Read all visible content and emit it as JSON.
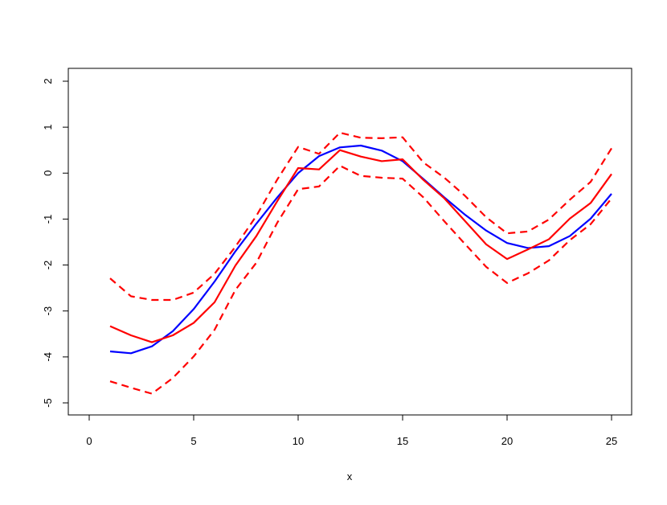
{
  "chart_data": {
    "type": "line",
    "title": "",
    "xlabel": "x",
    "ylabel": "",
    "xlim": [
      0,
      25
    ],
    "ylim": [
      -5,
      2
    ],
    "grid": false,
    "x_ticks": [
      "0",
      "5",
      "10",
      "15",
      "20",
      "25"
    ],
    "y_ticks": [
      "-5",
      "-4",
      "-3",
      "-2",
      "-1",
      "0",
      "1",
      "2"
    ],
    "x": [
      1,
      2,
      3,
      4,
      5,
      6,
      7,
      8,
      9,
      10,
      11,
      12,
      13,
      14,
      15,
      16,
      17,
      18,
      19,
      20,
      21,
      22,
      23,
      24,
      25
    ],
    "series": [
      {
        "color": "#0000ff",
        "style": "solid",
        "values": [
          -3.88,
          -3.92,
          -3.77,
          -3.44,
          -2.96,
          -2.36,
          -1.7,
          -1.1,
          -0.53,
          0.0,
          0.37,
          0.56,
          0.6,
          0.49,
          0.26,
          -0.13,
          -0.53,
          -0.91,
          -1.25,
          -1.52,
          -1.63,
          -1.59,
          -1.37,
          -0.99,
          -0.45
        ]
      },
      {
        "color": "#ff0000",
        "style": "solid",
        "values": [
          -3.33,
          -3.53,
          -3.68,
          -3.53,
          -3.26,
          -2.81,
          -2.01,
          -1.37,
          -0.61,
          0.11,
          0.08,
          0.5,
          0.36,
          0.26,
          0.3,
          -0.15,
          -0.55,
          -1.05,
          -1.55,
          -1.87,
          -1.66,
          -1.44,
          -0.99,
          -0.65,
          -0.02
        ]
      },
      {
        "color": "#ff0000",
        "style": "dashed",
        "values": [
          -2.29,
          -2.68,
          -2.76,
          -2.76,
          -2.6,
          -2.19,
          -1.6,
          -0.93,
          -0.14,
          0.57,
          0.42,
          0.88,
          0.77,
          0.76,
          0.78,
          0.23,
          -0.1,
          -0.5,
          -0.96,
          -1.31,
          -1.27,
          -1.01,
          -0.58,
          -0.19,
          0.54
        ]
      },
      {
        "color": "#ff0000",
        "style": "dashed",
        "values": [
          -4.53,
          -4.67,
          -4.8,
          -4.46,
          -3.99,
          -3.41,
          -2.54,
          -1.95,
          -1.08,
          -0.35,
          -0.29,
          0.16,
          -0.06,
          -0.1,
          -0.12,
          -0.53,
          -1.05,
          -1.55,
          -2.04,
          -2.39,
          -2.18,
          -1.9,
          -1.46,
          -1.11,
          -0.55
        ]
      }
    ]
  }
}
